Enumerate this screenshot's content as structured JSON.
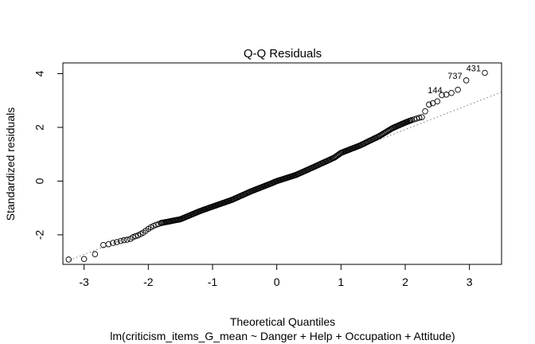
{
  "chart_data": {
    "type": "scatter",
    "title": "Q-Q Residuals",
    "xlabel": "Theoretical Quantiles",
    "xlabel_sub": "lm(criticism_items_G_mean ~ Danger + Help + Occupation + Attitude)",
    "ylabel": "Standardized residuals",
    "xlim": [
      -3.33,
      3.5
    ],
    "ylim": [
      -3.1,
      4.4
    ],
    "x_ticks": [
      -3,
      -2,
      -1,
      0,
      1,
      2,
      3
    ],
    "x_tick_labels": [
      "-3",
      "-2",
      "-1",
      "0",
      "1",
      "2",
      "3"
    ],
    "y_ticks": [
      -2,
      0,
      2,
      4
    ],
    "y_tick_labels": [
      "-2",
      "0",
      "2",
      "4"
    ],
    "grid": false,
    "reference_line": {
      "intercept": 0.06,
      "slope": 0.93
    },
    "points": [
      {
        "x": -3.24,
        "y": -2.92
      },
      {
        "x": -3.0,
        "y": -2.9
      },
      {
        "x": -2.83,
        "y": -2.72
      },
      {
        "x": -2.7,
        "y": -2.38
      },
      {
        "x": -2.62,
        "y": -2.35
      },
      {
        "x": -2.55,
        "y": -2.3
      },
      {
        "x": -2.49,
        "y": -2.27
      },
      {
        "x": -2.43,
        "y": -2.23
      },
      {
        "x": -2.38,
        "y": -2.2
      },
      {
        "x": -2.33,
        "y": -2.18
      },
      {
        "x": -2.28,
        "y": -2.15
      },
      {
        "x": -2.24,
        "y": -2.09
      },
      {
        "x": -2.2,
        "y": -2.05
      },
      {
        "x": -2.16,
        "y": -2.02
      },
      {
        "x": -2.12,
        "y": -1.97
      },
      {
        "x": -2.08,
        "y": -1.92
      },
      {
        "x": -2.04,
        "y": -1.85
      },
      {
        "x": -2.0,
        "y": -1.78
      },
      {
        "x": -1.96,
        "y": -1.72
      },
      {
        "x": -1.92,
        "y": -1.67
      },
      {
        "x": -1.88,
        "y": -1.63
      },
      {
        "x": -1.84,
        "y": -1.6
      },
      {
        "x": -1.8,
        "y": -1.56
      }
    ],
    "bulk_curve": [
      {
        "x": -1.8,
        "y": -1.56
      },
      {
        "x": -1.5,
        "y": -1.42
      },
      {
        "x": -1.2,
        "y": -1.12
      },
      {
        "x": -1.0,
        "y": -0.95
      },
      {
        "x": -0.7,
        "y": -0.7
      },
      {
        "x": -0.4,
        "y": -0.38
      },
      {
        "x": -0.1,
        "y": -0.1
      },
      {
        "x": 0.0,
        "y": 0.0
      },
      {
        "x": 0.3,
        "y": 0.23
      },
      {
        "x": 0.6,
        "y": 0.55
      },
      {
        "x": 0.9,
        "y": 0.88
      },
      {
        "x": 1.0,
        "y": 1.05
      },
      {
        "x": 1.3,
        "y": 1.33
      },
      {
        "x": 1.6,
        "y": 1.68
      },
      {
        "x": 1.8,
        "y": 1.97
      },
      {
        "x": 2.0,
        "y": 2.18
      },
      {
        "x": 2.1,
        "y": 2.27
      }
    ],
    "upper_tail": [
      {
        "x": 2.14,
        "y": 2.3
      },
      {
        "x": 2.18,
        "y": 2.33
      },
      {
        "x": 2.22,
        "y": 2.36
      },
      {
        "x": 2.26,
        "y": 2.38
      },
      {
        "x": 2.31,
        "y": 2.6
      },
      {
        "x": 2.37,
        "y": 2.85
      },
      {
        "x": 2.43,
        "y": 2.9
      },
      {
        "x": 2.5,
        "y": 2.97
      },
      {
        "x": 2.57,
        "y": 3.2
      },
      {
        "x": 2.64,
        "y": 3.22
      },
      {
        "x": 2.72,
        "y": 3.28
      },
      {
        "x": 2.82,
        "y": 3.4
      },
      {
        "x": 2.95,
        "y": 3.75
      },
      {
        "x": 3.24,
        "y": 4.03
      }
    ],
    "labeled_points": [
      {
        "label": "144",
        "x": 2.64,
        "y": 3.22
      },
      {
        "label": "737",
        "x": 2.95,
        "y": 3.75
      },
      {
        "label": "431",
        "x": 3.24,
        "y": 4.03
      }
    ]
  }
}
